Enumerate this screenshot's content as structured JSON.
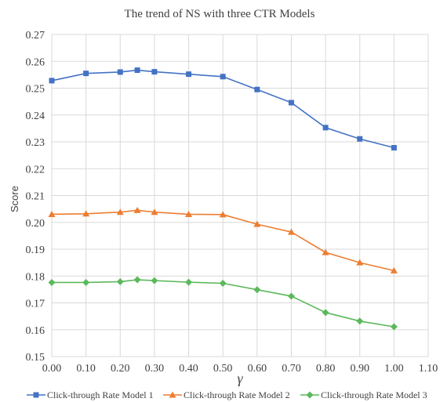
{
  "chart_data": {
    "type": "line",
    "title": "The trend of NS with three CTR Models",
    "xlabel": "γ",
    "ylabel": "Score",
    "xlim": [
      0.0,
      1.1
    ],
    "ylim": [
      0.15,
      0.27
    ],
    "x_ticks": [
      "0.00",
      "0.10",
      "0.20",
      "0.30",
      "0.40",
      "0.50",
      "0.60",
      "0.70",
      "0.80",
      "0.90",
      "1.00",
      "1.10"
    ],
    "y_ticks": [
      "0.15",
      "0.16",
      "0.17",
      "0.18",
      "0.19",
      "0.20",
      "0.21",
      "0.22",
      "0.23",
      "0.24",
      "0.25",
      "0.26",
      "0.27"
    ],
    "grid": true,
    "legend_position": "bottom",
    "x": [
      0.0,
      0.1,
      0.2,
      0.25,
      0.3,
      0.4,
      0.5,
      0.6,
      0.7,
      0.8,
      0.9,
      1.0
    ],
    "series": [
      {
        "name": "Click-through Rate Model 1",
        "color": "#4472c4",
        "marker": "square",
        "values": [
          0.2528,
          0.2555,
          0.256,
          0.2567,
          0.2561,
          0.2552,
          0.2543,
          0.2495,
          0.2446,
          0.2353,
          0.2311,
          0.2278
        ]
      },
      {
        "name": "Click-through Rate Model 2",
        "color": "#ed7d31",
        "marker": "triangle",
        "values": [
          0.203,
          0.2032,
          0.2038,
          0.2045,
          0.2038,
          0.203,
          0.2029,
          0.1993,
          0.1964,
          0.1888,
          0.185,
          0.182
        ]
      },
      {
        "name": "Click-through Rate Model 3",
        "color": "#5cb85c",
        "marker": "diamond",
        "values": [
          0.1776,
          0.1776,
          0.1779,
          0.1786,
          0.1783,
          0.1777,
          0.1773,
          0.1749,
          0.1725,
          0.1664,
          0.1632,
          0.1611
        ]
      }
    ]
  }
}
